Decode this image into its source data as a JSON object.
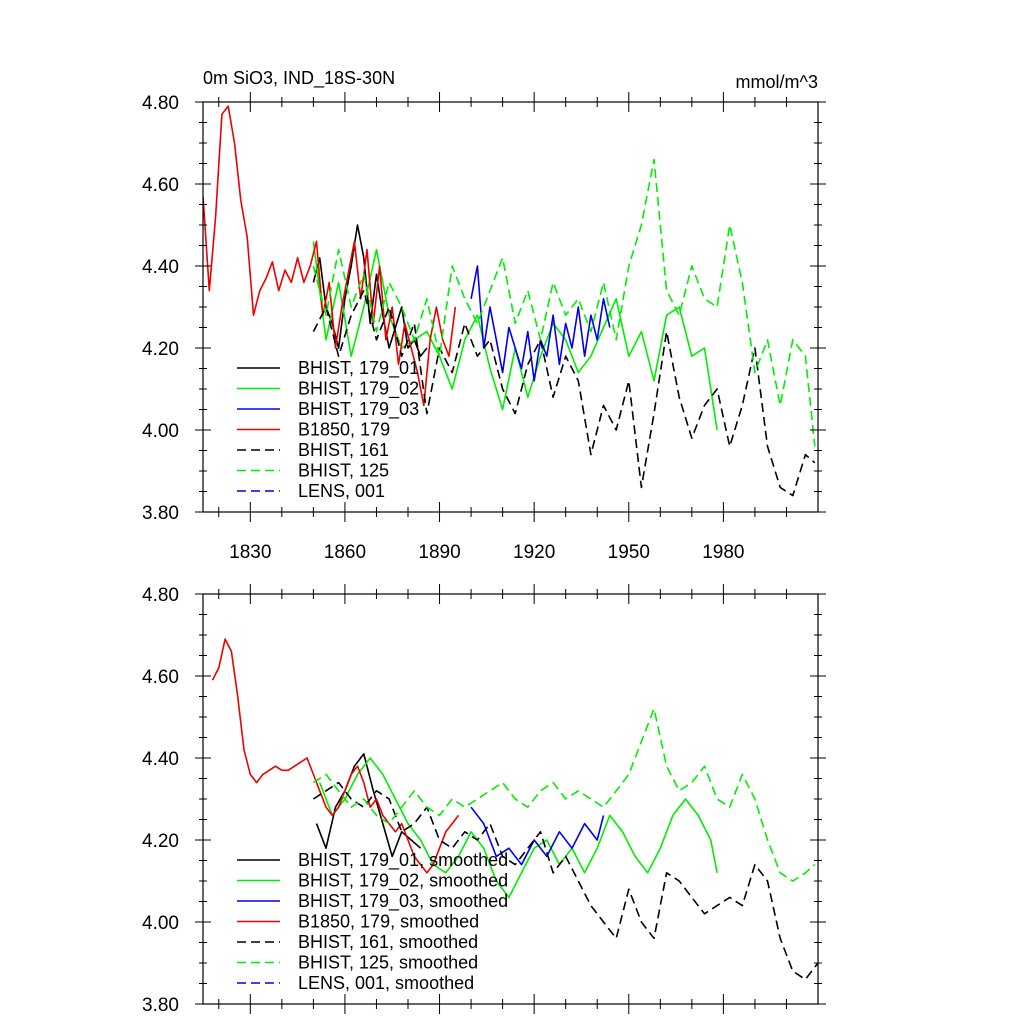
{
  "chart_data": [
    {
      "type": "line",
      "panel": "top",
      "title": "0m SiO3, IND_18S-30N",
      "units": "mmol/m^3",
      "xlabel": "",
      "ylabel": "",
      "xlim": [
        1815,
        2010
      ],
      "ylim": [
        3.8,
        4.8
      ],
      "xticks": [
        1830,
        1860,
        1890,
        1920,
        1950,
        1980
      ],
      "xtick_labels": [
        "1830",
        "1860",
        "1890",
        "1920",
        "1950",
        "1980"
      ],
      "yticks": [
        3.8,
        4.0,
        4.2,
        4.4,
        4.6,
        4.8
      ],
      "ytick_labels": [
        "3.80",
        "4.00",
        "4.20",
        "4.40",
        "4.60",
        "4.80"
      ],
      "legend_position": "bottom-left",
      "series": [
        {
          "name": "BHIST, 179_01",
          "color": "#000000",
          "dash": "solid",
          "x": [
            1850,
            1852,
            1854,
            1856,
            1858,
            1860,
            1862,
            1864,
            1866,
            1868,
            1870,
            1872,
            1874,
            1876,
            1878,
            1880,
            1882,
            1884,
            1886
          ],
          "values": [
            4.36,
            4.42,
            4.3,
            4.26,
            4.2,
            4.32,
            4.4,
            4.5,
            4.42,
            4.26,
            4.38,
            4.28,
            4.2,
            4.25,
            4.3,
            4.2,
            4.22,
            4.18,
            4.2
          ]
        },
        {
          "name": "BHIST, 179_02",
          "color": "#00ee00",
          "dash": "solid",
          "x": [
            1850,
            1854,
            1858,
            1862,
            1866,
            1870,
            1874,
            1878,
            1882,
            1886,
            1890,
            1894,
            1898,
            1902,
            1906,
            1910,
            1914,
            1918,
            1922,
            1926,
            1930,
            1934,
            1938,
            1942,
            1946,
            1950,
            1954,
            1958,
            1962,
            1966,
            1970,
            1974,
            1978
          ],
          "values": [
            4.46,
            4.22,
            4.36,
            4.18,
            4.3,
            4.44,
            4.28,
            4.2,
            4.22,
            4.24,
            4.18,
            4.1,
            4.22,
            4.28,
            4.15,
            4.05,
            4.2,
            4.08,
            4.18,
            4.26,
            4.22,
            4.14,
            4.18,
            4.25,
            4.32,
            4.18,
            4.24,
            4.12,
            4.28,
            4.3,
            4.18,
            4.2,
            4.0
          ]
        },
        {
          "name": "BHIST, 179_03",
          "color": "#0000ee",
          "dash": "solid",
          "x": [
            1900,
            1902,
            1904,
            1906,
            1908,
            1910,
            1912,
            1914,
            1916,
            1918,
            1920,
            1922,
            1924,
            1926,
            1928,
            1930,
            1932,
            1934,
            1936,
            1938,
            1940,
            1942,
            1944
          ],
          "values": [
            4.32,
            4.4,
            4.2,
            4.3,
            4.22,
            4.14,
            4.25,
            4.2,
            4.15,
            4.24,
            4.12,
            4.22,
            4.18,
            4.28,
            4.16,
            4.26,
            4.2,
            4.3,
            4.18,
            4.28,
            4.22,
            4.32,
            4.25
          ]
        },
        {
          "name": "B1850, 179",
          "color": "#ee0000",
          "dash": "solid",
          "x": [
            1815,
            1817,
            1819,
            1821,
            1823,
            1825,
            1827,
            1829,
            1831,
            1833,
            1835,
            1837,
            1839,
            1841,
            1843,
            1845,
            1847,
            1849,
            1851,
            1853,
            1855,
            1857,
            1859,
            1861,
            1863,
            1865,
            1867,
            1869,
            1871,
            1873,
            1875,
            1877,
            1879,
            1881,
            1883,
            1885,
            1887,
            1889,
            1891,
            1893,
            1895
          ],
          "values": [
            4.57,
            4.34,
            4.52,
            4.77,
            4.79,
            4.7,
            4.56,
            4.47,
            4.28,
            4.34,
            4.37,
            4.41,
            4.34,
            4.39,
            4.36,
            4.42,
            4.36,
            4.4,
            4.46,
            4.28,
            4.36,
            4.2,
            4.3,
            4.38,
            4.46,
            4.32,
            4.44,
            4.26,
            4.4,
            4.22,
            4.3,
            4.16,
            4.26,
            4.2,
            4.14,
            4.06,
            4.22,
            4.3,
            4.22,
            4.18,
            4.3
          ]
        },
        {
          "name": "BHIST, 161",
          "color": "#000000",
          "dash": "dashed",
          "x": [
            1850,
            1854,
            1858,
            1862,
            1866,
            1870,
            1874,
            1878,
            1882,
            1886,
            1890,
            1894,
            1898,
            1902,
            1906,
            1910,
            1914,
            1918,
            1922,
            1926,
            1930,
            1934,
            1938,
            1942,
            1946,
            1950,
            1954,
            1958,
            1962,
            1966,
            1970,
            1974,
            1978,
            1982,
            1986,
            1990,
            1994,
            1998,
            2002,
            2006,
            2009
          ],
          "values": [
            4.24,
            4.3,
            4.18,
            4.28,
            4.34,
            4.22,
            4.3,
            4.18,
            4.26,
            4.04,
            4.2,
            4.14,
            4.26,
            4.18,
            4.22,
            4.1,
            4.04,
            4.16,
            4.22,
            4.08,
            4.18,
            4.12,
            3.94,
            4.06,
            4.0,
            4.12,
            3.86,
            4.04,
            4.24,
            4.08,
            3.98,
            4.06,
            4.1,
            3.96,
            4.06,
            4.2,
            3.96,
            3.86,
            3.84,
            3.94,
            3.92
          ]
        },
        {
          "name": "BHIST, 125",
          "color": "#00ee00",
          "dash": "dashed",
          "x": [
            1850,
            1854,
            1858,
            1862,
            1866,
            1870,
            1874,
            1878,
            1882,
            1886,
            1890,
            1894,
            1898,
            1902,
            1906,
            1910,
            1914,
            1918,
            1922,
            1926,
            1930,
            1934,
            1938,
            1942,
            1946,
            1950,
            1954,
            1958,
            1962,
            1966,
            1970,
            1974,
            1978,
            1982,
            1986,
            1990,
            1994,
            1998,
            2002,
            2006,
            2009
          ],
          "values": [
            4.4,
            4.28,
            4.44,
            4.3,
            4.38,
            4.24,
            4.36,
            4.3,
            4.22,
            4.32,
            4.18,
            4.4,
            4.32,
            4.26,
            4.34,
            4.42,
            4.26,
            4.34,
            4.22,
            4.36,
            4.28,
            4.32,
            4.24,
            4.36,
            4.22,
            4.4,
            4.5,
            4.66,
            4.34,
            4.28,
            4.4,
            4.32,
            4.3,
            4.5,
            4.36,
            4.14,
            4.22,
            4.06,
            4.22,
            4.18,
            3.96
          ]
        },
        {
          "name": "LENS, 001",
          "color": "#0000ee",
          "dash": "dashed",
          "x": [],
          "values": []
        }
      ]
    },
    {
      "type": "line",
      "panel": "bottom",
      "title": "",
      "xlabel": "",
      "ylabel": "",
      "xlim": [
        1815,
        2010
      ],
      "ylim": [
        3.8,
        4.8
      ],
      "yticks": [
        3.8,
        4.0,
        4.2,
        4.4,
        4.6,
        4.8
      ],
      "ytick_labels": [
        "3.80",
        "4.00",
        "4.20",
        "4.40",
        "4.60",
        "4.80"
      ],
      "legend_position": "bottom-left",
      "series": [
        {
          "name": "BHIST, 179_01, smoothed",
          "color": "#000000",
          "dash": "solid",
          "x": [
            1851,
            1854,
            1857,
            1860,
            1863,
            1866,
            1869,
            1872,
            1875,
            1878,
            1881,
            1884
          ],
          "values": [
            4.24,
            4.18,
            4.28,
            4.32,
            4.38,
            4.41,
            4.32,
            4.24,
            4.16,
            4.22,
            4.2,
            4.18
          ]
        },
        {
          "name": "BHIST, 179_02, smoothed",
          "color": "#00ee00",
          "dash": "solid",
          "x": [
            1852,
            1856,
            1860,
            1864,
            1868,
            1872,
            1876,
            1880,
            1884,
            1888,
            1892,
            1896,
            1900,
            1904,
            1908,
            1912,
            1916,
            1920,
            1924,
            1928,
            1932,
            1936,
            1940,
            1944,
            1948,
            1952,
            1956,
            1960,
            1964,
            1968,
            1972,
            1976,
            1978
          ],
          "values": [
            4.34,
            4.26,
            4.3,
            4.36,
            4.4,
            4.36,
            4.3,
            4.24,
            4.2,
            4.14,
            4.12,
            4.16,
            4.22,
            4.18,
            4.1,
            4.06,
            4.12,
            4.18,
            4.2,
            4.14,
            4.18,
            4.12,
            4.18,
            4.26,
            4.22,
            4.16,
            4.12,
            4.18,
            4.26,
            4.3,
            4.26,
            4.2,
            4.12
          ]
        },
        {
          "name": "BHIST, 179_03, smoothed",
          "color": "#0000ee",
          "dash": "solid",
          "x": [
            1900,
            1904,
            1908,
            1912,
            1916,
            1920,
            1924,
            1928,
            1932,
            1936,
            1940,
            1942
          ],
          "values": [
            4.28,
            4.24,
            4.16,
            4.18,
            4.14,
            4.2,
            4.16,
            4.22,
            4.18,
            4.24,
            4.2,
            4.26
          ]
        },
        {
          "name": "B1850, 179, smoothed",
          "color": "#ee0000",
          "dash": "solid",
          "x": [
            1818,
            1820,
            1822,
            1824,
            1826,
            1828,
            1830,
            1832,
            1834,
            1836,
            1838,
            1840,
            1842,
            1844,
            1846,
            1848,
            1850,
            1852,
            1854,
            1856,
            1858,
            1860,
            1862,
            1864,
            1866,
            1868,
            1870,
            1872,
            1874,
            1876,
            1878,
            1880,
            1882,
            1884,
            1886,
            1888,
            1890,
            1892,
            1894,
            1896
          ],
          "values": [
            4.59,
            4.62,
            4.69,
            4.66,
            4.55,
            4.42,
            4.36,
            4.34,
            4.36,
            4.37,
            4.38,
            4.37,
            4.37,
            4.38,
            4.39,
            4.4,
            4.36,
            4.32,
            4.28,
            4.26,
            4.28,
            4.32,
            4.36,
            4.38,
            4.34,
            4.28,
            4.3,
            4.26,
            4.24,
            4.22,
            4.24,
            4.2,
            4.16,
            4.14,
            4.12,
            4.14,
            4.18,
            4.22,
            4.24,
            4.26
          ]
        },
        {
          "name": "BHIST, 161, smoothed",
          "color": "#000000",
          "dash": "dashed",
          "x": [
            1850,
            1854,
            1858,
            1862,
            1866,
            1870,
            1874,
            1878,
            1882,
            1886,
            1890,
            1894,
            1898,
            1902,
            1906,
            1910,
            1914,
            1918,
            1922,
            1926,
            1930,
            1934,
            1938,
            1942,
            1946,
            1950,
            1954,
            1958,
            1962,
            1966,
            1970,
            1974,
            1978,
            1982,
            1986,
            1990,
            1994,
            1998,
            2002,
            2006,
            2010
          ],
          "values": [
            4.3,
            4.32,
            4.34,
            4.3,
            4.28,
            4.32,
            4.3,
            4.22,
            4.24,
            4.28,
            4.2,
            4.18,
            4.22,
            4.2,
            4.24,
            4.16,
            4.14,
            4.18,
            4.22,
            4.12,
            4.16,
            4.1,
            4.04,
            4.0,
            3.96,
            4.08,
            4.0,
            3.96,
            4.12,
            4.1,
            4.06,
            4.02,
            4.04,
            4.06,
            4.04,
            4.14,
            4.1,
            3.96,
            3.88,
            3.86,
            3.9
          ]
        },
        {
          "name": "BHIST, 125, smoothed",
          "color": "#00ee00",
          "dash": "dashed",
          "x": [
            1850,
            1854,
            1858,
            1862,
            1866,
            1870,
            1874,
            1878,
            1882,
            1886,
            1890,
            1894,
            1898,
            1902,
            1906,
            1910,
            1914,
            1918,
            1922,
            1926,
            1930,
            1934,
            1938,
            1942,
            1946,
            1950,
            1954,
            1958,
            1962,
            1966,
            1970,
            1974,
            1978,
            1982,
            1986,
            1990,
            1994,
            1998,
            2002,
            2006,
            2009
          ],
          "values": [
            4.34,
            4.36,
            4.32,
            4.28,
            4.3,
            4.26,
            4.24,
            4.28,
            4.32,
            4.28,
            4.26,
            4.3,
            4.28,
            4.3,
            4.32,
            4.34,
            4.3,
            4.28,
            4.32,
            4.34,
            4.3,
            4.32,
            4.3,
            4.28,
            4.32,
            4.36,
            4.44,
            4.52,
            4.38,
            4.32,
            4.34,
            4.38,
            4.3,
            4.28,
            4.36,
            4.3,
            4.2,
            4.12,
            4.1,
            4.12,
            4.14
          ]
        },
        {
          "name": "LENS, 001, smoothed",
          "color": "#0000ee",
          "dash": "dashed",
          "x": [],
          "values": []
        }
      ]
    }
  ]
}
